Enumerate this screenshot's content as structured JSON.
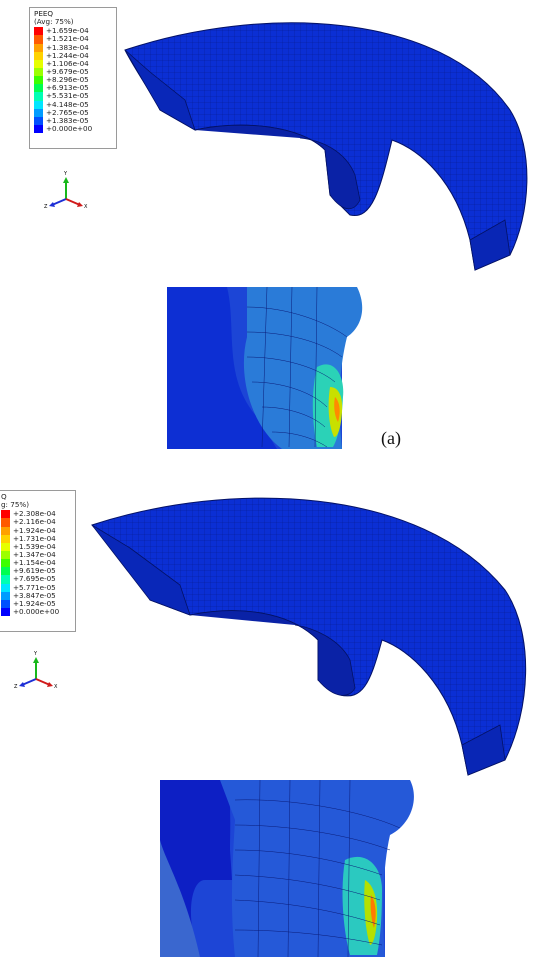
{
  "panel_a": {
    "legend": {
      "title": "PEEQ",
      "avg": "(Avg: 75%)",
      "values": [
        "+1.659e-04",
        "+1.521e-04",
        "+1.383e-04",
        "+1.244e-04",
        "+1.106e-04",
        "+9.679e-05",
        "+8.296e-05",
        "+6.913e-05",
        "+5.531e-05",
        "+4.148e-05",
        "+2.765e-05",
        "+1.383e-05",
        "+0.000e+00"
      ]
    },
    "caption": "(a)"
  },
  "panel_b": {
    "legend": {
      "title": "Q",
      "avg": "g: 75%)",
      "values": [
        "+2.308e-04",
        "+2.116e-04",
        "+1.924e-04",
        "+1.731e-04",
        "+1.539e-04",
        "+1.347e-04",
        "+1.154e-04",
        "+9.619e-05",
        "+7.695e-05",
        "+5.771e-05",
        "+3.847e-05",
        "+1.924e-05",
        "+0.000e+00"
      ]
    }
  },
  "triad": {
    "y": "Y",
    "x": "X",
    "z": "Z"
  },
  "colors": {
    "contour": [
      "#ff0000",
      "#ff5a00",
      "#ffa000",
      "#ffd200",
      "#e6ff00",
      "#9cff00",
      "#3cff00",
      "#00ff50",
      "#00ffb4",
      "#00e6ff",
      "#009cff",
      "#0050ff",
      "#0000ff"
    ],
    "mesh_blue": "#0b2fd4",
    "background": "#ffffff"
  }
}
